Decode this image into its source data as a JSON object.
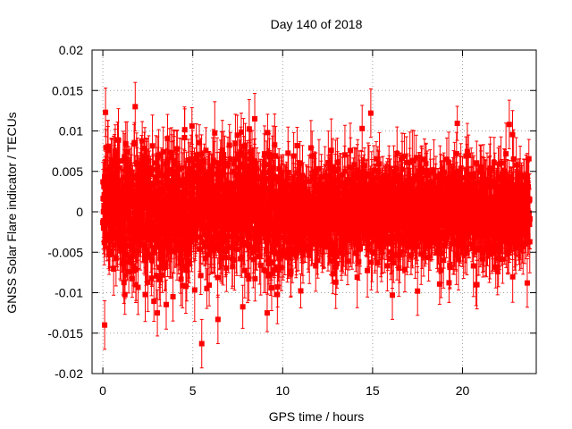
{
  "chart_data": {
    "type": "scatter",
    "title": "Day 140 of 2018",
    "xlabel": "GPS time / hours",
    "ylabel": "GNSS Solar Flare indicator / TECUs",
    "xlim": [
      -0.6,
      24.1
    ],
    "ylim": [
      -0.02,
      0.02
    ],
    "xticks": [
      0,
      5,
      10,
      15,
      20
    ],
    "xtick_labels": [
      "0",
      "5",
      "10",
      "15",
      "20"
    ],
    "yticks": [
      -0.02,
      -0.015,
      -0.01,
      -0.005,
      0,
      0.005,
      0.01,
      0.015,
      0.02
    ],
    "ytick_labels": [
      "-0.02",
      "-0.015",
      "-0.01",
      "-0.005",
      "0",
      "0.005",
      "0.01",
      "0.015",
      "0.02"
    ],
    "grid": true,
    "marker": "square",
    "error_bars": true,
    "series_color": "#ff0000",
    "series": [
      {
        "name": "GNSS Solar Flare indicator",
        "x_start": 0.0,
        "x_end": 23.75,
        "sample_interval_hours": 0.00833,
        "y_mean": 0.0,
        "y_std_approx": 0.004,
        "typical_error_approx": 0.003,
        "description": "dense time series sampled every ~30 s, noise slightly larger before ~10 h",
        "outliers": [
          {
            "x": 0.1,
            "y": -0.014
          },
          {
            "x": 0.15,
            "y": 0.0123
          },
          {
            "x": 1.8,
            "y": 0.013
          },
          {
            "x": 5.5,
            "y": -0.0163
          },
          {
            "x": 6.4,
            "y": -0.0133
          },
          {
            "x": 3.9,
            "y": -0.0105
          },
          {
            "x": 14.9,
            "y": 0.0122
          },
          {
            "x": 16.1,
            "y": -0.0103
          },
          {
            "x": 17.5,
            "y": -0.0098
          },
          {
            "x": 20.8,
            "y": -0.009
          },
          {
            "x": 23.6,
            "y": -0.0088
          },
          {
            "x": 22.6,
            "y": 0.0108
          }
        ]
      }
    ]
  }
}
